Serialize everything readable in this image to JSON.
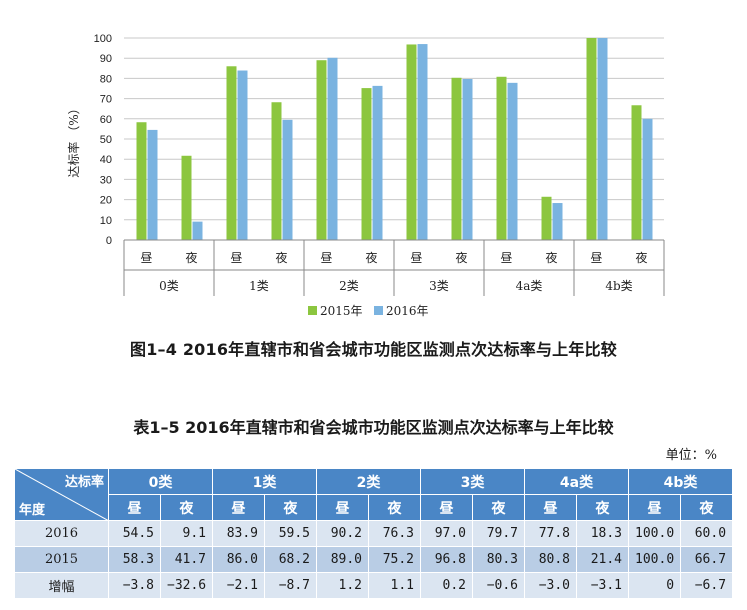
{
  "chart_data": {
    "type": "bar",
    "ylabel": "达标率 （%）",
    "ylim": [
      0,
      100
    ],
    "yticks": [
      0,
      10,
      20,
      30,
      40,
      50,
      60,
      70,
      80,
      90,
      100
    ],
    "groups": [
      "0类",
      "1类",
      "2类",
      "3类",
      "4a类",
      "4b类"
    ],
    "subcategories": [
      "昼",
      "夜"
    ],
    "categories": [
      "0类昼",
      "0类夜",
      "1类昼",
      "1类夜",
      "2类昼",
      "2类夜",
      "3类昼",
      "3类夜",
      "4a类昼",
      "4a类夜",
      "4b类昼",
      "4b类夜"
    ],
    "series": [
      {
        "name": "2015年",
        "color": "#8cc63f",
        "values": [
          58.3,
          41.7,
          86.0,
          68.2,
          89.0,
          75.2,
          96.8,
          80.3,
          80.8,
          21.4,
          100.0,
          66.7
        ]
      },
      {
        "name": "2016年",
        "color": "#7ab3e0",
        "values": [
          54.5,
          9.1,
          83.9,
          59.5,
          90.2,
          76.3,
          97.0,
          79.7,
          77.8,
          18.3,
          100.0,
          60.0
        ]
      }
    ],
    "legend_position": "bottom",
    "grid": true
  },
  "figure_caption": "图1–4  2016年直辖市和省会城市功能区监测点次达标率与上年比较",
  "table": {
    "caption": "表1–5  2016年直辖市和省会城市功能区监测点次达标率与上年比较",
    "unit": "单位：%",
    "corner_top": "达标率",
    "corner_bottom": "年度",
    "groups": [
      "0类",
      "1类",
      "2类",
      "3类",
      "4a类",
      "4b类"
    ],
    "subheaders": [
      "昼",
      "夜",
      "昼",
      "夜",
      "昼",
      "夜",
      "昼",
      "夜",
      "昼",
      "夜",
      "昼",
      "夜"
    ],
    "rows": [
      {
        "label": "2016",
        "values": [
          "54.5",
          "9.1",
          "83.9",
          "59.5",
          "90.2",
          "76.3",
          "97.0",
          "79.7",
          "77.8",
          "18.3",
          "100.0",
          "60.0"
        ]
      },
      {
        "label": "2015",
        "values": [
          "58.3",
          "41.7",
          "86.0",
          "68.2",
          "89.0",
          "75.2",
          "96.8",
          "80.3",
          "80.8",
          "21.4",
          "100.0",
          "66.7"
        ]
      },
      {
        "label": "增幅",
        "values": [
          "−3.8",
          "−32.6",
          "−2.1",
          "−8.7",
          "1.2",
          "1.1",
          "0.2",
          "−0.6",
          "−3.0",
          "−3.1",
          "0",
          "−6.7"
        ]
      }
    ]
  }
}
